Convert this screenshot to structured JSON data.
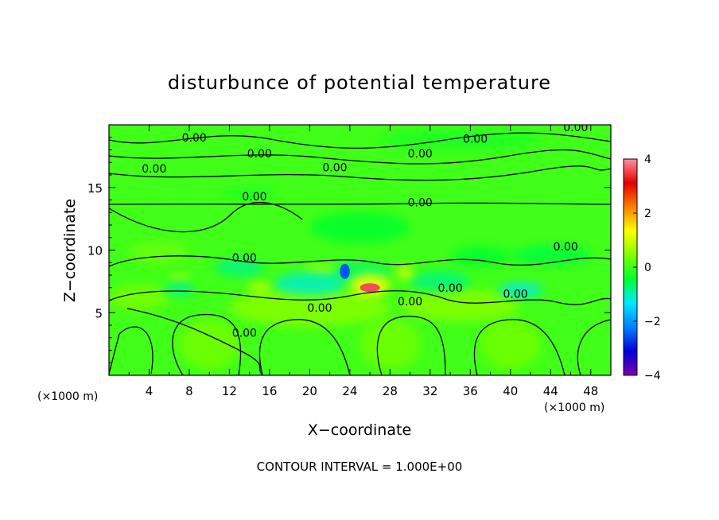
{
  "chart_data": {
    "type": "heatmap",
    "title": "disturbunce of potential temperature",
    "xlabel": "X−coordinate",
    "ylabel": "Z−coordinate",
    "x_unit": "(×1000 m)",
    "y_unit": "(×1000 m)",
    "xlim": [
      0,
      50
    ],
    "ylim": [
      0,
      20
    ],
    "x_ticks": [
      4,
      8,
      12,
      16,
      20,
      24,
      28,
      32,
      36,
      40,
      44,
      48
    ],
    "y_ticks": [
      5,
      10,
      15
    ],
    "colorbar": {
      "range": [
        -4,
        4
      ],
      "ticks": [
        4,
        2,
        0,
        -2,
        -4
      ],
      "stops": [
        "#7a00b0",
        "#0000d8",
        "#0080ff",
        "#00e8ff",
        "#00ff30",
        "#80ff00",
        "#ffff00",
        "#ff8000",
        "#e00000",
        "#ff90a0"
      ]
    },
    "background_value": 0,
    "anomalies": [
      {
        "x": 26,
        "y": 7.0,
        "rx": 1.0,
        "ry": 0.35,
        "value": 3.6
      },
      {
        "x": 26,
        "y": 7.2,
        "rx": 2.0,
        "ry": 0.9,
        "value": 1.3
      },
      {
        "x": 29.5,
        "y": 8.2,
        "rx": 0.8,
        "ry": 0.5,
        "value": 1.2
      },
      {
        "x": 21,
        "y": 8.4,
        "rx": 1.6,
        "ry": 0.3,
        "value": 1.0
      },
      {
        "x": 23.5,
        "y": 8.3,
        "rx": 0.5,
        "ry": 0.6,
        "value": -2.5
      },
      {
        "x": 15,
        "y": 7.0,
        "rx": 1.2,
        "ry": 0.45,
        "value": 0.9
      },
      {
        "x": 7,
        "y": 7.8,
        "rx": 1.0,
        "ry": 0.3,
        "value": 0.8
      },
      {
        "x": 20,
        "y": 7.3,
        "rx": 3.5,
        "ry": 0.9,
        "value": -1.1
      },
      {
        "x": 13,
        "y": 8.6,
        "rx": 2.5,
        "ry": 0.7,
        "value": -0.8
      },
      {
        "x": 7,
        "y": 6.9,
        "rx": 1.5,
        "ry": 0.5,
        "value": -0.9
      },
      {
        "x": 25,
        "y": 8.2,
        "rx": 3.0,
        "ry": 0.8,
        "value": -0.7
      },
      {
        "x": 33,
        "y": 7.5,
        "rx": 3.0,
        "ry": 0.8,
        "value": -0.8
      },
      {
        "x": 41,
        "y": 6.8,
        "rx": 2.2,
        "ry": 0.6,
        "value": -1.2
      },
      {
        "x": 44,
        "y": 9.6,
        "rx": 4.0,
        "ry": 0.8,
        "value": -0.5
      },
      {
        "x": 37,
        "y": 9.5,
        "rx": 3.0,
        "ry": 0.8,
        "value": -0.4
      },
      {
        "x": 25,
        "y": 11.8,
        "rx": 5.0,
        "ry": 1.2,
        "value": -0.4
      },
      {
        "x": 14,
        "y": 14.5,
        "rx": 2.5,
        "ry": 0.4,
        "value": -0.3
      },
      {
        "x": 35,
        "y": 18.8,
        "rx": 8.0,
        "ry": 0.7,
        "value": -0.3
      },
      {
        "x": 20,
        "y": 5.4,
        "rx": 8.0,
        "ry": 1.5,
        "value": 0.5
      },
      {
        "x": 35,
        "y": 5.6,
        "rx": 6.0,
        "ry": 1.3,
        "value": 0.5
      },
      {
        "x": 3,
        "y": 6.2,
        "rx": 3.0,
        "ry": 1.0,
        "value": 0.4
      },
      {
        "x": 28,
        "y": 2.5,
        "rx": 3.0,
        "ry": 2.0,
        "value": 0.35
      },
      {
        "x": 40,
        "y": 2.5,
        "rx": 3.0,
        "ry": 2.0,
        "value": 0.35
      },
      {
        "x": 10,
        "y": 2.5,
        "rx": 3.0,
        "ry": 2.0,
        "value": 0.35
      },
      {
        "x": 5,
        "y": 9.8,
        "rx": 3.0,
        "ry": 0.9,
        "value": 0.3
      }
    ],
    "contour_labels": [
      {
        "text": "0.00",
        "x": 8.5,
        "y": 19.0
      },
      {
        "text": "0.00",
        "x": 36.5,
        "y": 18.9
      },
      {
        "text": "0.00",
        "x": 46.5,
        "y": 19.8
      },
      {
        "text": "0.00",
        "x": 15,
        "y": 17.7
      },
      {
        "text": "0.00",
        "x": 31,
        "y": 17.7
      },
      {
        "text": "0.00",
        "x": 4.5,
        "y": 16.5
      },
      {
        "text": "0.00",
        "x": 22.5,
        "y": 16.6
      },
      {
        "text": "0.00",
        "x": 14.5,
        "y": 14.3
      },
      {
        "text": "0.00",
        "x": 31,
        "y": 13.8
      },
      {
        "text": "0.00",
        "x": 45.5,
        "y": 10.3
      },
      {
        "text": "0.00",
        "x": 13.5,
        "y": 9.4
      },
      {
        "text": "0.00",
        "x": 34,
        "y": 7.0
      },
      {
        "text": "0.00",
        "x": 40.5,
        "y": 6.5
      },
      {
        "text": "0.00",
        "x": 30,
        "y": 5.9
      },
      {
        "text": "0.00",
        "x": 21,
        "y": 5.4
      },
      {
        "text": "0.00",
        "x": 13.5,
        "y": 3.4
      }
    ],
    "contour_interval_label": "CONTOUR INTERVAL = 1.000E+00"
  }
}
